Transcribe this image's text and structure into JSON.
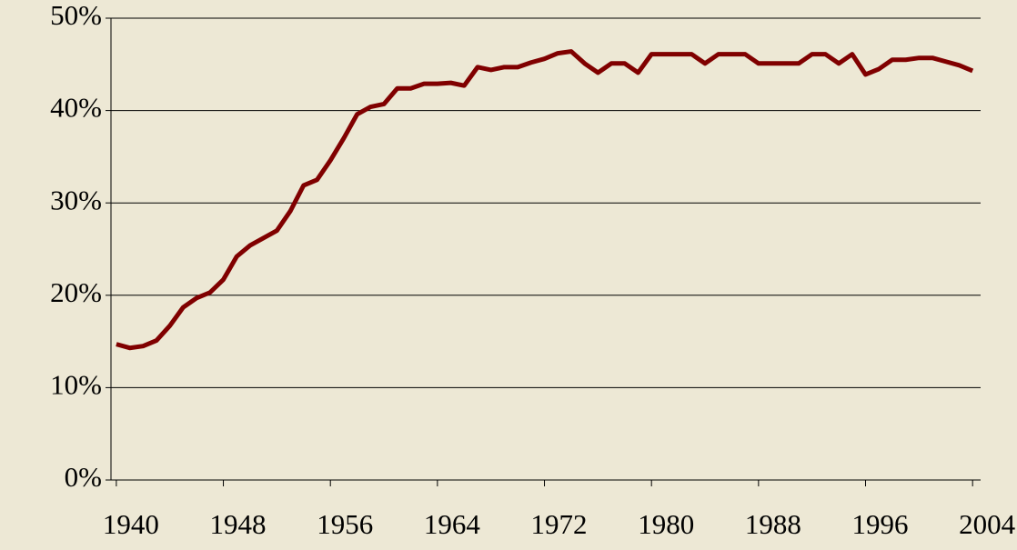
{
  "chart_data": {
    "type": "line",
    "x": [
      1940,
      1941,
      1942,
      1943,
      1944,
      1945,
      1946,
      1947,
      1948,
      1949,
      1950,
      1951,
      1952,
      1953,
      1954,
      1955,
      1956,
      1957,
      1958,
      1959,
      1960,
      1961,
      1962,
      1963,
      1964,
      1965,
      1966,
      1967,
      1968,
      1969,
      1970,
      1971,
      1972,
      1973,
      1974,
      1975,
      1976,
      1977,
      1978,
      1979,
      1980,
      1981,
      1982,
      1983,
      1984,
      1985,
      1986,
      1987,
      1988,
      1989,
      1990,
      1991,
      1992,
      1993,
      1994,
      1995,
      1996,
      1997,
      1998,
      1999,
      2000,
      2001,
      2002,
      2003,
      2004
    ],
    "series": [
      {
        "color": "#800000",
        "values": [
          14.7,
          14.3,
          14.5,
          15.1,
          16.7,
          18.7,
          19.7,
          20.3,
          21.7,
          24.2,
          25.4,
          26.2,
          27.0,
          29.1,
          31.9,
          32.5,
          34.6,
          37.0,
          39.6,
          40.4,
          40.7,
          42.4,
          42.4,
          42.9,
          42.9,
          43.0,
          42.7,
          44.7,
          44.4,
          44.7,
          44.7,
          45.2,
          45.6,
          46.2,
          46.4,
          45.1,
          44.1,
          45.1,
          45.1,
          44.1,
          46.1,
          46.1,
          46.1,
          46.1,
          45.1,
          46.1,
          46.1,
          46.1,
          45.1,
          45.1,
          45.1,
          45.1,
          46.1,
          46.1,
          45.1,
          46.1,
          43.9,
          44.5,
          45.5,
          45.5,
          45.7,
          45.7,
          45.3,
          44.9,
          44.3
        ]
      }
    ],
    "xlim": [
      1939.6,
      2004.6
    ],
    "xticks": [
      1940,
      1948,
      1956,
      1964,
      1972,
      1980,
      1988,
      1996,
      2004
    ],
    "ylim": [
      0,
      50
    ],
    "yticks": [
      {
        "value": 0,
        "label": "0%"
      },
      {
        "value": 10,
        "label": "10%"
      },
      {
        "value": 20,
        "label": "20%"
      },
      {
        "value": 30,
        "label": "30%"
      },
      {
        "value": 40,
        "label": "40%"
      },
      {
        "value": 50,
        "label": "50%"
      }
    ],
    "grid": true
  }
}
